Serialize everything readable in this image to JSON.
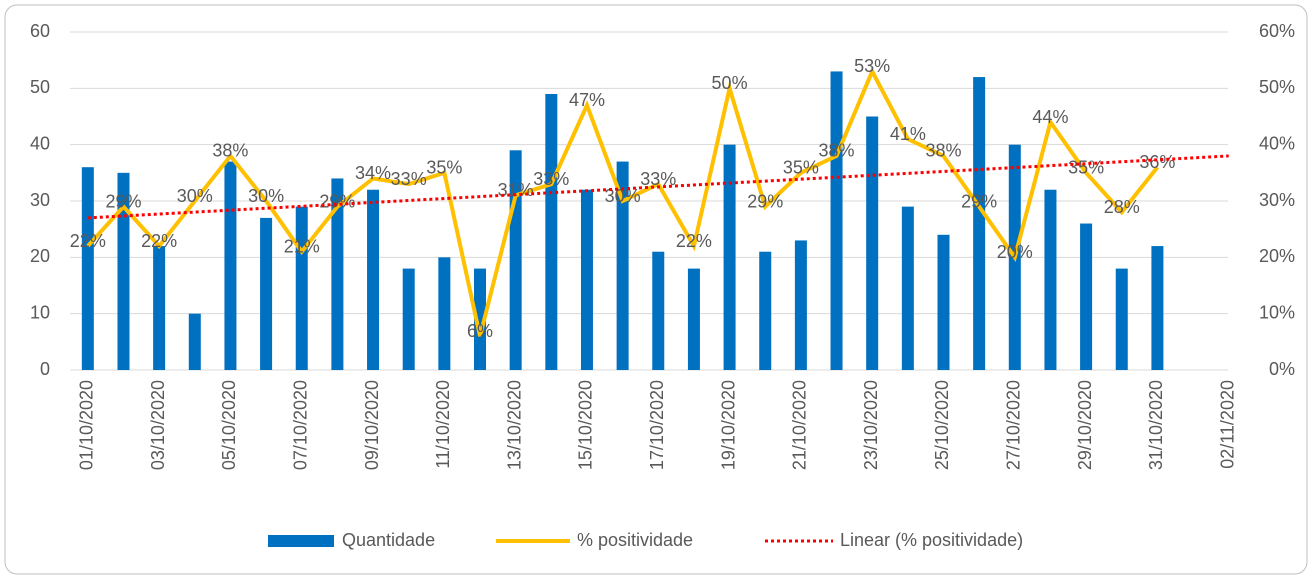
{
  "chart_data": {
    "type": "bar",
    "categories": [
      "01/10/2020",
      null,
      "03/10/2020",
      null,
      "05/10/2020",
      null,
      "07/10/2020",
      null,
      "09/10/2020",
      null,
      "11/10/2020",
      null,
      "13/10/2020",
      null,
      "15/10/2020",
      null,
      "17/10/2020",
      null,
      "19/10/2020",
      null,
      "21/10/2020",
      null,
      "23/10/2020",
      null,
      "25/10/2020",
      null,
      "27/10/2020",
      null,
      "29/10/2020",
      null,
      "31/10/2020",
      null,
      "02/11/2020"
    ],
    "series": [
      {
        "name": "Quantidade",
        "color": "#0070c0",
        "values": [
          36,
          35,
          22,
          10,
          37,
          27,
          29,
          34,
          32,
          18,
          20,
          18,
          39,
          49,
          32,
          37,
          21,
          18,
          40,
          21,
          23,
          53,
          45,
          29,
          24,
          52,
          40,
          32,
          26,
          18,
          22,
          null,
          null
        ]
      },
      {
        "name": "% positividade",
        "color": "#ffc000",
        "axis": "y2",
        "type": "line",
        "values": [
          22,
          29,
          22,
          30,
          38,
          30,
          21,
          29,
          34,
          33,
          35,
          6,
          31,
          33,
          47,
          30,
          33,
          22,
          50,
          29,
          35,
          38,
          53,
          41,
          38,
          29,
          20,
          44,
          35,
          28,
          36,
          null,
          null
        ],
        "value_labels": [
          "22%",
          "29%",
          "22%",
          "30%",
          "38%",
          "30%",
          "21%",
          "29%",
          "34%",
          "33%",
          "35%",
          "6%",
          "31%",
          "33%",
          "47%",
          "30%",
          "33%",
          "22%",
          "50%",
          "29%",
          "35%",
          "38%",
          "53%",
          "41%",
          "38%",
          "29%",
          "20%",
          "44%",
          "35%",
          "28%",
          "36%",
          null,
          null
        ]
      }
    ],
    "trendline": {
      "name": "Linear (% positividade)",
      "color": "#ff0000",
      "axis": "y2",
      "values": [
        27,
        38
      ]
    },
    "ylim": [
      0,
      60
    ],
    "yticks": [
      0,
      10,
      20,
      30,
      40,
      50,
      60
    ],
    "y2lim": [
      0,
      60
    ],
    "y2ticks": [
      {
        "value": 0,
        "label": "0%"
      },
      {
        "value": 10,
        "label": "10%"
      },
      {
        "value": 20,
        "label": "20%"
      },
      {
        "value": 30,
        "label": "30%"
      },
      {
        "value": 40,
        "label": "40%"
      },
      {
        "value": 50,
        "label": "50%"
      },
      {
        "value": 60,
        "label": "60%"
      }
    ],
    "grid": true,
    "legend": "bottom"
  }
}
